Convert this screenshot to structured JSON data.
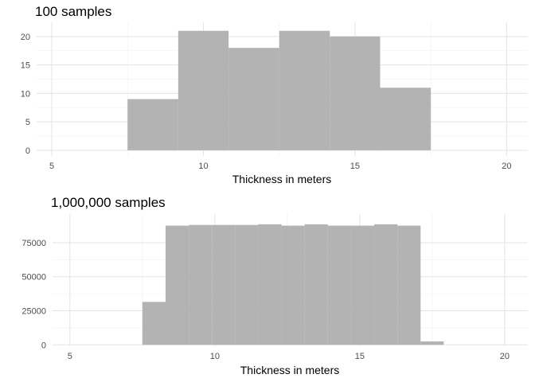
{
  "colors": {
    "bar": "#b3b3b3",
    "grid": "#e3e3e3",
    "background": "#ffffff"
  },
  "chart_data": [
    {
      "type": "bar",
      "title": "100 samples",
      "xlabel": "Thickness in meters",
      "ylabel": "",
      "xlim": [
        4.5,
        20.7
      ],
      "ylim": [
        -1,
        22.5
      ],
      "xticks": [
        5,
        10,
        15,
        20
      ],
      "yticks": [
        0,
        5,
        10,
        15,
        20
      ],
      "grid": true,
      "bins": [
        {
          "x0": 7.5,
          "x1": 9.17,
          "count": 9
        },
        {
          "x0": 9.17,
          "x1": 10.83,
          "count": 21
        },
        {
          "x0": 10.83,
          "x1": 12.5,
          "count": 18
        },
        {
          "x0": 12.5,
          "x1": 14.17,
          "count": 21
        },
        {
          "x0": 14.17,
          "x1": 15.83,
          "count": 20
        },
        {
          "x0": 15.83,
          "x1": 17.5,
          "count": 11
        }
      ]
    },
    {
      "type": "bar",
      "title": "1,000,000 samples",
      "xlabel": "Thickness in meters",
      "ylabel": "",
      "xlim": [
        4.4,
        20.8
      ],
      "ylim": [
        -1000,
        96000
      ],
      "xticks": [
        5,
        10,
        15,
        20
      ],
      "yticks": [
        0,
        25000,
        50000,
        75000
      ],
      "grid": true,
      "bins": [
        {
          "x0": 7.5,
          "x1": 8.3,
          "count": 31500
        },
        {
          "x0": 8.3,
          "x1": 9.1,
          "count": 87500
        },
        {
          "x0": 9.1,
          "x1": 9.9,
          "count": 88000
        },
        {
          "x0": 9.9,
          "x1": 10.7,
          "count": 88000
        },
        {
          "x0": 10.7,
          "x1": 11.5,
          "count": 88000
        },
        {
          "x0": 11.5,
          "x1": 12.3,
          "count": 88500
        },
        {
          "x0": 12.3,
          "x1": 13.1,
          "count": 87500
        },
        {
          "x0": 13.1,
          "x1": 13.9,
          "count": 88500
        },
        {
          "x0": 13.9,
          "x1": 14.7,
          "count": 87500
        },
        {
          "x0": 14.7,
          "x1": 15.5,
          "count": 87500
        },
        {
          "x0": 15.5,
          "x1": 16.3,
          "count": 88500
        },
        {
          "x0": 16.3,
          "x1": 17.1,
          "count": 87500
        },
        {
          "x0": 17.1,
          "x1": 17.9,
          "count": 2500
        }
      ]
    }
  ]
}
